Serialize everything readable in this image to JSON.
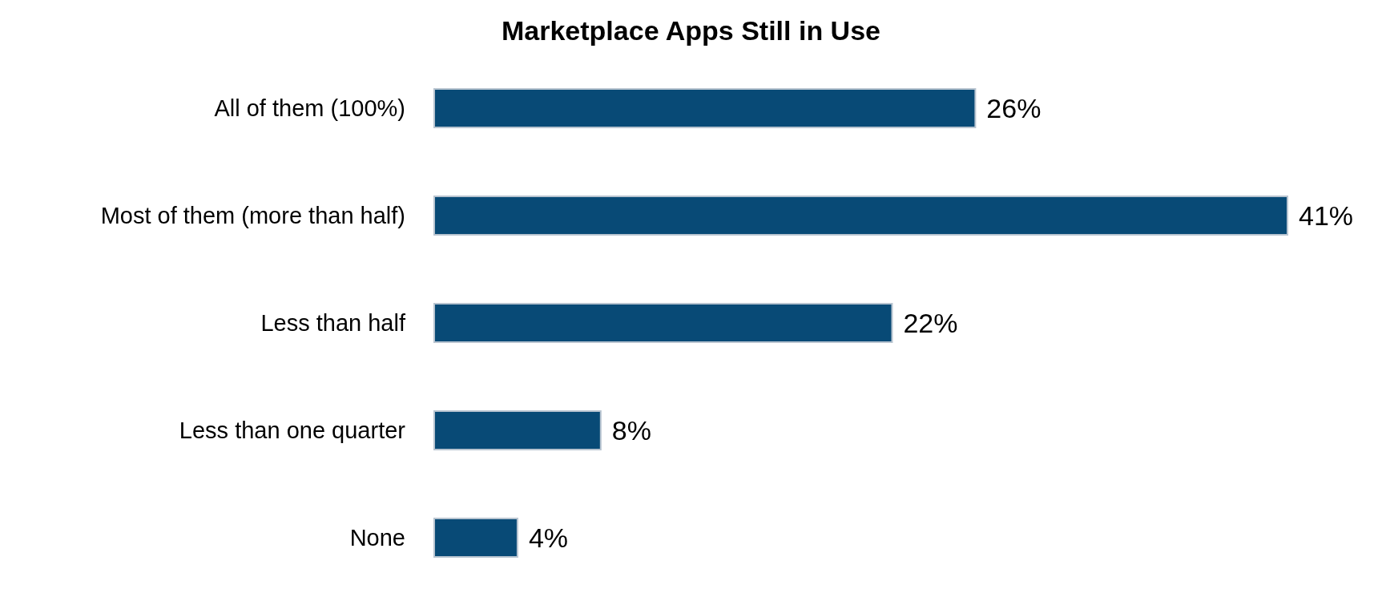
{
  "chart_data": {
    "type": "bar",
    "orientation": "horizontal",
    "title": "Marketplace Apps Still in Use",
    "categories": [
      "All of them (100%)",
      "Most of them (more than half)",
      "Less than half",
      "Less than one quarter",
      "None"
    ],
    "values": [
      26,
      41,
      22,
      8,
      4
    ],
    "value_labels": [
      "26%",
      "41%",
      "22%",
      "8%",
      "4%"
    ],
    "color": "#084a76"
  }
}
